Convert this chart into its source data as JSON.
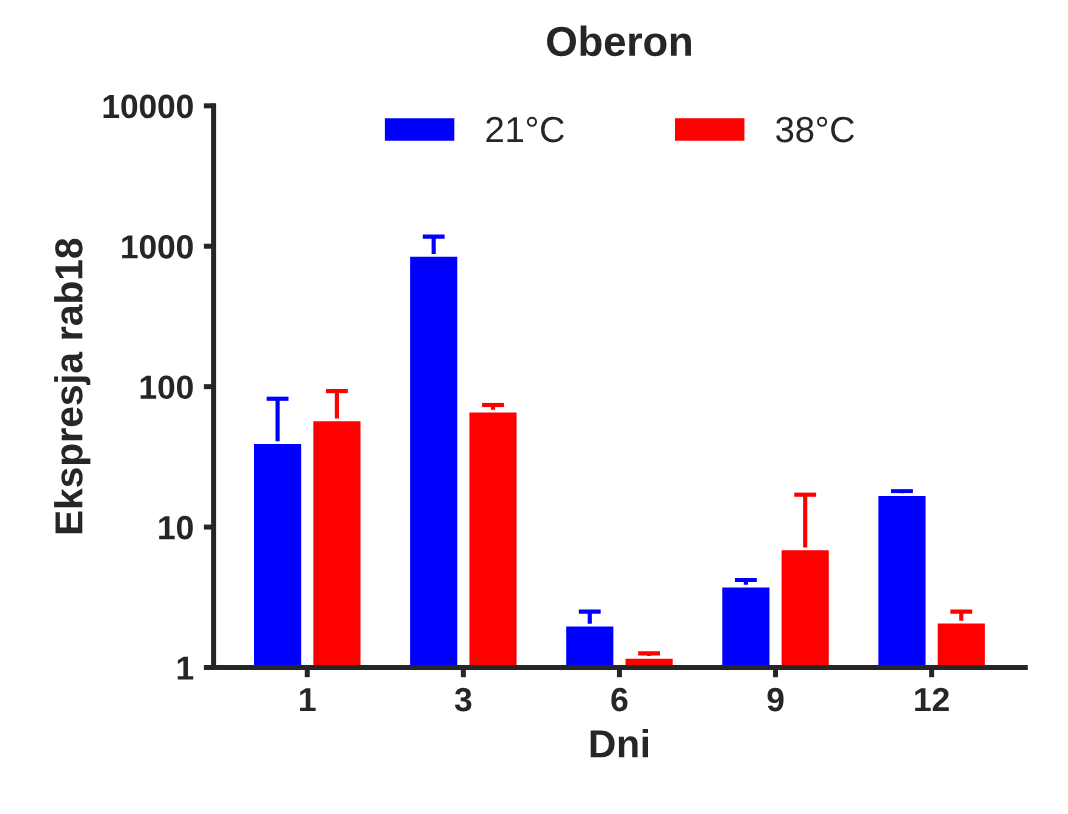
{
  "chart_data": {
    "type": "bar",
    "title": "Oberon",
    "xlabel": "Dni",
    "ylabel": "Ekspresja rab18",
    "categories": [
      "1",
      "3",
      "6",
      "9",
      "12"
    ],
    "series": [
      {
        "name": "21°C",
        "color": "#0000ff",
        "values": [
          40,
          860,
          2.0,
          3.8,
          17
        ],
        "errors": [
          [
            40,
            82
          ],
          [
            860,
            1170
          ],
          [
            2.0,
            2.5
          ],
          [
            3.8,
            4.2
          ],
          [
            17,
            18
          ]
        ]
      },
      {
        "name": "38°C",
        "color": "#ff0000",
        "values": [
          58,
          67,
          1.18,
          7.0,
          2.1
        ],
        "errors": [
          [
            58,
            93
          ],
          [
            67,
            74
          ],
          [
            1.18,
            1.26
          ],
          [
            7.0,
            17
          ],
          [
            2.1,
            2.5
          ]
        ]
      }
    ],
    "log": true,
    "ylim": [
      1,
      10000
    ],
    "yticks": [
      1,
      10,
      100,
      1000,
      10000
    ],
    "grid": false,
    "legend": "top"
  }
}
